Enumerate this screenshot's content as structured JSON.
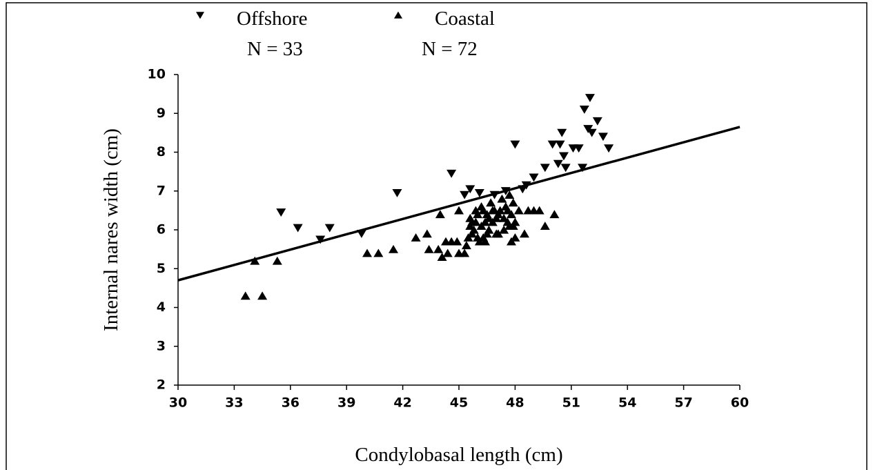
{
  "chart_data": {
    "type": "scatter",
    "xlabel": "Condylobasal length (cm)",
    "ylabel": "Internal nares width (cm)",
    "xlim": [
      30,
      60
    ],
    "ylim": [
      2,
      10
    ],
    "xticks": [
      30,
      33,
      36,
      39,
      42,
      45,
      48,
      51,
      54,
      57,
      60
    ],
    "yticks": [
      2,
      3,
      4,
      5,
      6,
      7,
      8,
      9,
      10
    ],
    "series": [
      {
        "name": "Offshore",
        "n_label": "N = 33",
        "marker": "triangle-down",
        "color": "#000000",
        "x": [
          35.5,
          36.4,
          37.6,
          38.1,
          39.8,
          41.7,
          44.6,
          45.6,
          46.1,
          46.9,
          47.5,
          48.0,
          48.4,
          48.6,
          49.0,
          49.6,
          50.0,
          50.3,
          50.4,
          50.5,
          50.6,
          50.7,
          51.1,
          51.4,
          51.6,
          51.7,
          51.9,
          52.0,
          52.1,
          52.4,
          52.7,
          53.0,
          45.3
        ],
        "y": [
          6.45,
          6.05,
          5.75,
          6.05,
          5.9,
          6.95,
          7.45,
          7.05,
          6.95,
          6.9,
          7.0,
          8.2,
          7.05,
          7.15,
          7.35,
          7.6,
          8.2,
          7.7,
          8.2,
          8.5,
          7.9,
          7.6,
          8.1,
          8.1,
          7.6,
          9.1,
          8.6,
          9.4,
          8.5,
          8.8,
          8.4,
          8.1,
          6.9
        ]
      },
      {
        "name": "Coastal",
        "n_label": "N = 72",
        "marker": "triangle-up",
        "color": "#000000",
        "x": [
          33.6,
          34.1,
          34.5,
          35.3,
          40.1,
          40.7,
          41.5,
          42.7,
          43.3,
          43.4,
          43.9,
          44.0,
          44.1,
          44.4,
          44.6,
          44.9,
          45.0,
          45.0,
          45.3,
          45.4,
          45.5,
          45.6,
          45.6,
          45.7,
          45.8,
          45.9,
          46.0,
          46.0,
          46.1,
          46.2,
          46.3,
          46.3,
          46.4,
          46.5,
          46.5,
          46.6,
          46.7,
          46.8,
          46.9,
          47.0,
          47.0,
          47.1,
          47.2,
          47.3,
          47.4,
          47.5,
          47.6,
          47.7,
          47.7,
          47.8,
          47.8,
          47.9,
          47.9,
          48.0,
          48.0,
          48.2,
          48.5,
          48.7,
          49.0,
          49.3,
          49.6,
          50.1,
          46.2,
          45.9,
          47.4,
          46.6,
          44.3,
          47.1,
          46.8,
          45.7,
          47.6,
          46.4
        ],
        "y": [
          4.3,
          5.2,
          4.3,
          5.2,
          5.4,
          5.4,
          5.5,
          5.8,
          5.9,
          5.5,
          5.5,
          6.4,
          5.3,
          5.4,
          5.7,
          5.7,
          6.5,
          5.4,
          5.4,
          5.6,
          5.8,
          6.1,
          6.3,
          5.9,
          6.0,
          6.2,
          5.8,
          6.4,
          5.7,
          6.1,
          5.8,
          6.5,
          6.2,
          6.4,
          5.9,
          6.3,
          6.7,
          6.2,
          6.5,
          5.9,
          6.3,
          6.4,
          6.5,
          6.8,
          6.3,
          6.6,
          6.2,
          6.9,
          6.1,
          6.4,
          5.7,
          6.7,
          6.1,
          5.8,
          6.2,
          6.5,
          5.9,
          6.5,
          6.5,
          6.5,
          6.1,
          6.4,
          6.6,
          6.5,
          6.0,
          6.0,
          5.7,
          5.9,
          6.5,
          6.2,
          6.5,
          5.7
        ]
      }
    ],
    "trend_line": {
      "x": [
        30,
        60
      ],
      "y": [
        4.7,
        8.65
      ],
      "color": "#000000"
    }
  }
}
